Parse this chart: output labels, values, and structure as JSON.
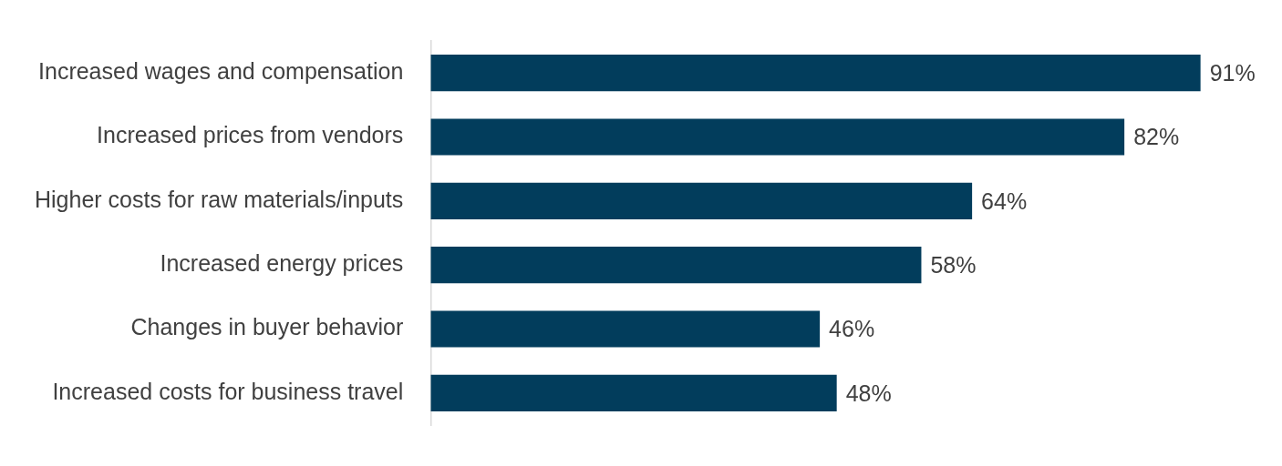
{
  "chart_data": {
    "type": "bar",
    "orientation": "horizontal",
    "categories": [
      "Increased wages and compensation",
      "Increased prices from vendors",
      "Higher costs for raw materials/inputs",
      "Increased energy prices",
      "Changes in buyer behavior",
      "Increased costs for business travel"
    ],
    "values": [
      91,
      82,
      64,
      58,
      46,
      48
    ],
    "value_labels": [
      "91%",
      "82%",
      "64%",
      "58%",
      "46%",
      "48%"
    ],
    "color": "#023d5c"
  }
}
